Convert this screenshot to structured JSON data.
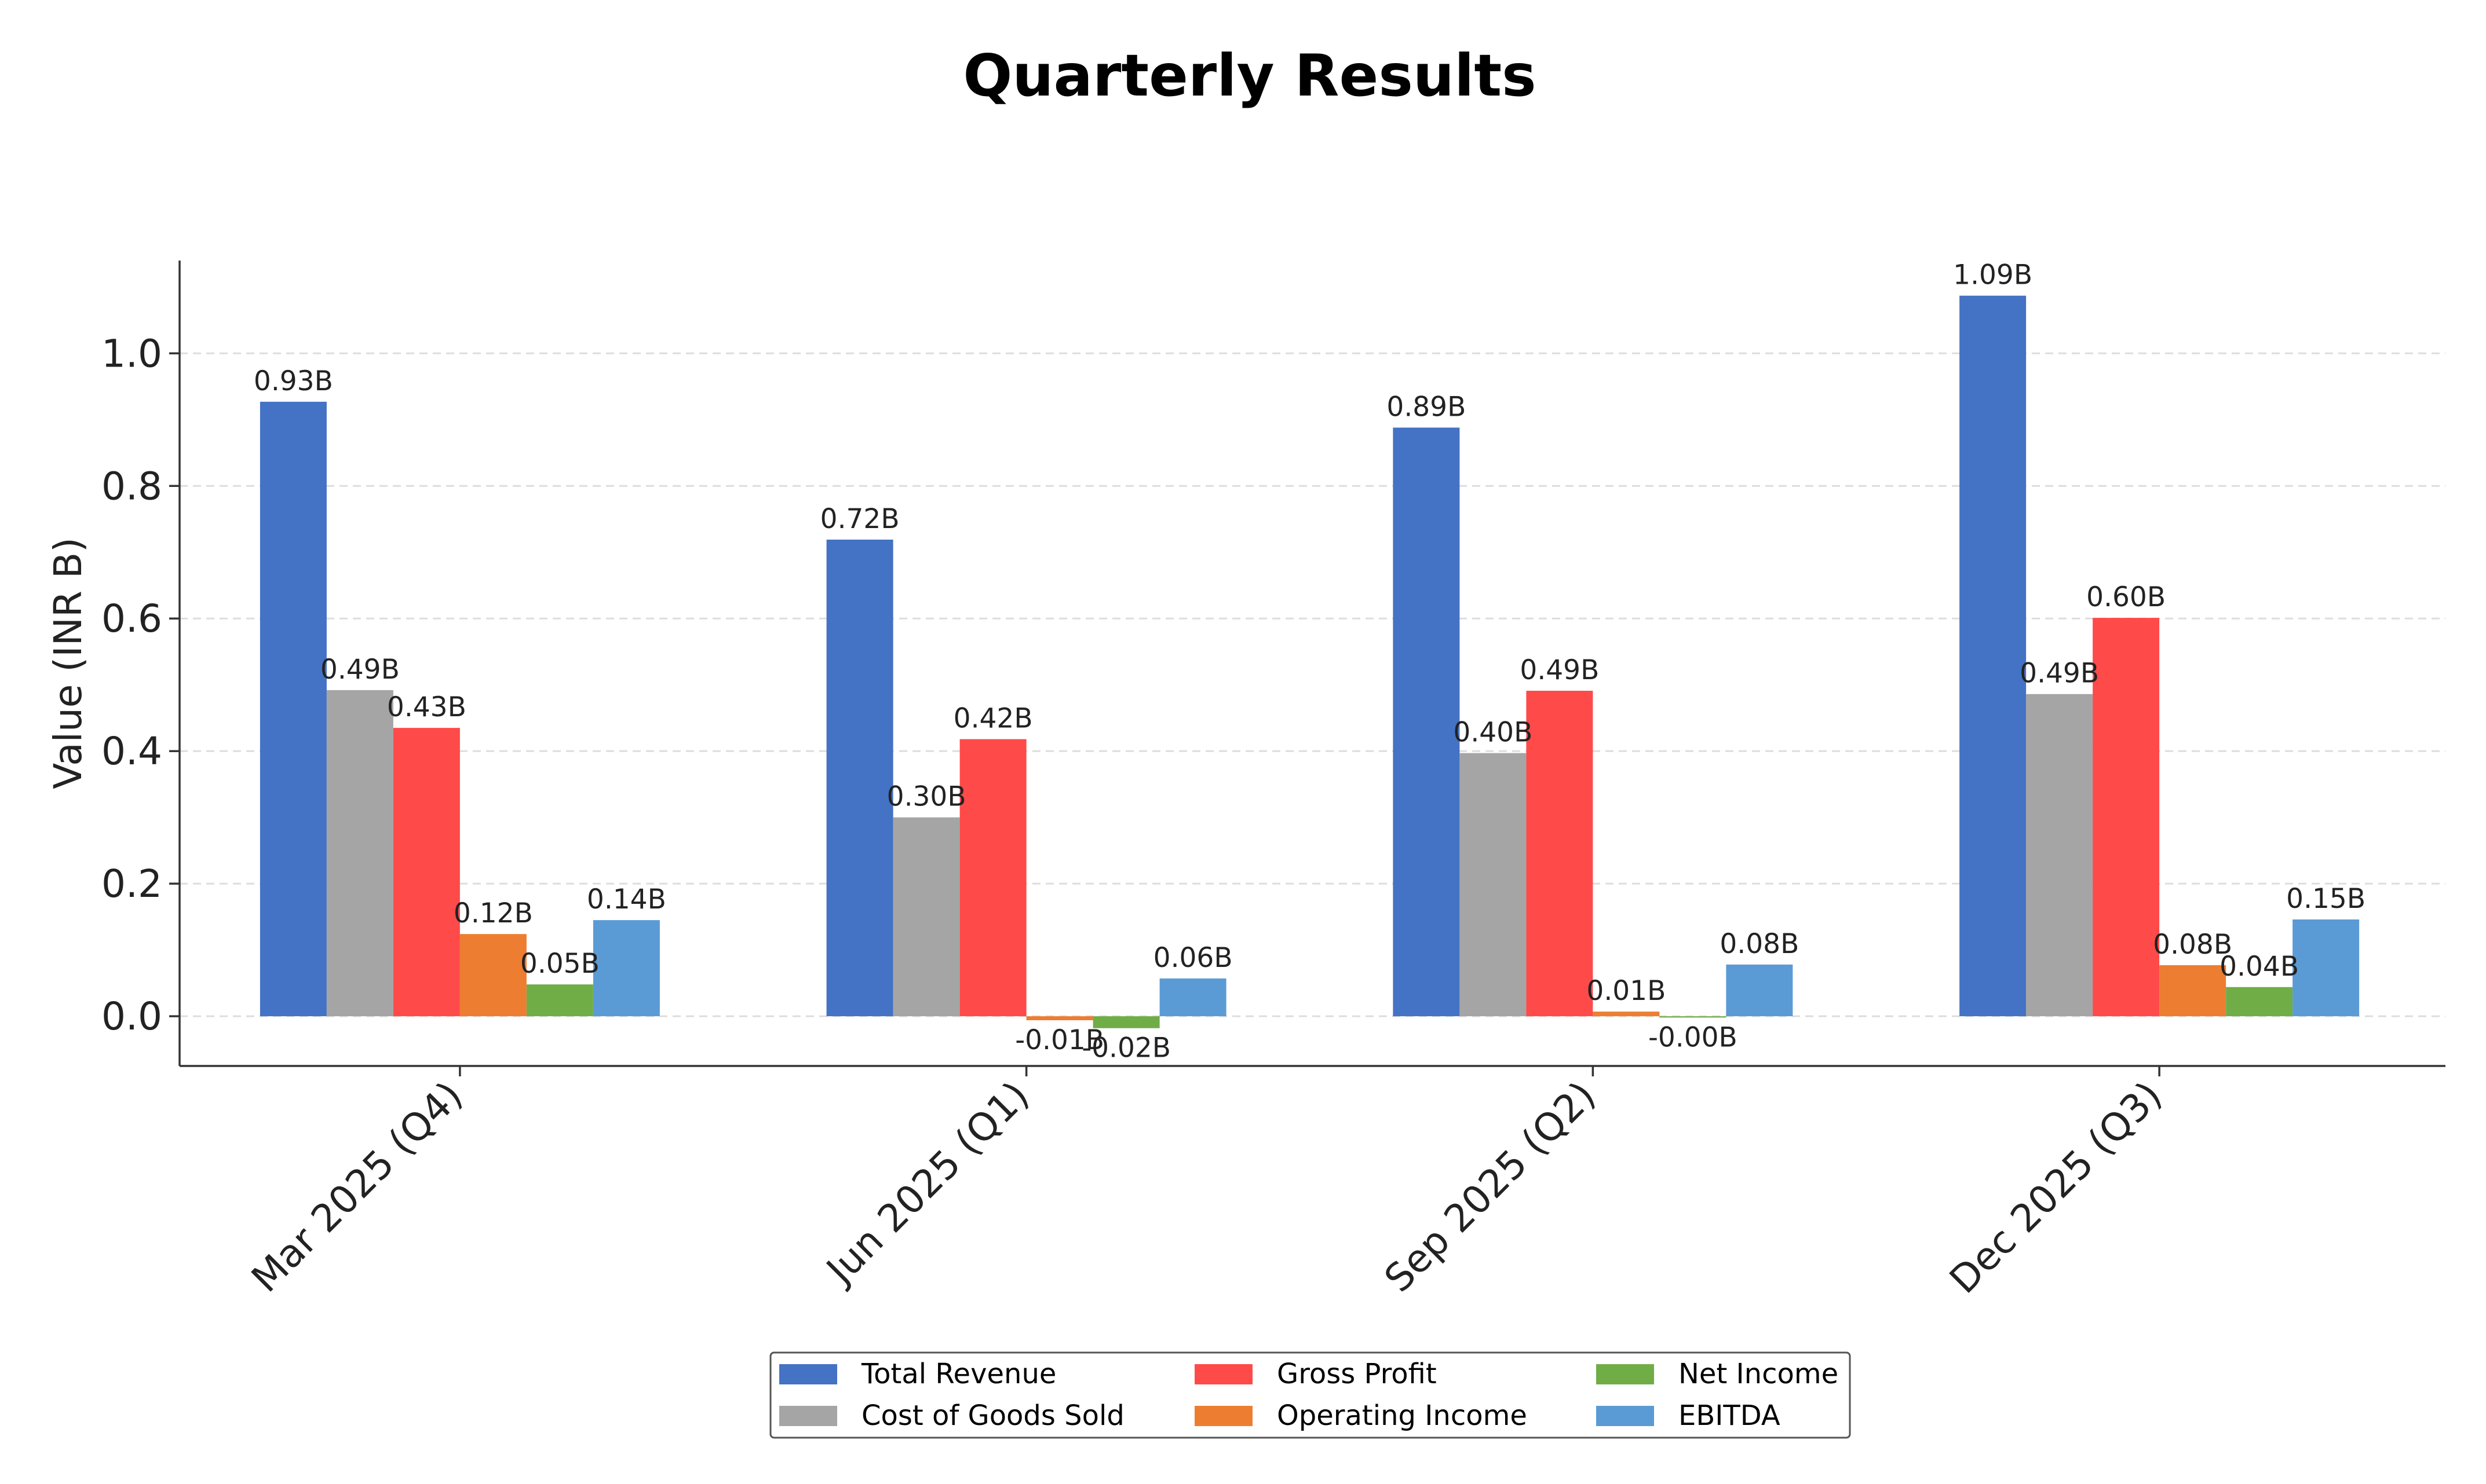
{
  "chart_data": {
    "type": "bar",
    "title": "Quarterly Results",
    "xlabel": "",
    "ylabel": "Value (INR B)",
    "categories": [
      "Mar 2025 (Q4)",
      "Jun 2025 (Q1)",
      "Sep 2025 (Q2)",
      "Dec 2025 (Q3)"
    ],
    "ylim": [
      -0.075,
      1.14
    ],
    "yticks": [
      0.0,
      0.2,
      0.4,
      0.6,
      0.8,
      1.0
    ],
    "ytick_labels": [
      "0.0",
      "0.2",
      "0.4",
      "0.6",
      "0.8",
      "1.0"
    ],
    "grid": true,
    "legend_position": "bottom-center",
    "series": [
      {
        "name": "Total Revenue",
        "color": "#4472c4",
        "values": [
          0.927,
          0.719,
          0.888,
          1.087
        ],
        "labels": [
          "0.93B",
          "0.72B",
          "0.89B",
          "1.09B"
        ]
      },
      {
        "name": "Cost of Goods Sold",
        "color": "#a5a5a5",
        "values": [
          0.492,
          0.3,
          0.397,
          0.486
        ],
        "labels": [
          "0.49B",
          "0.30B",
          "0.40B",
          "0.49B"
        ]
      },
      {
        "name": "Gross Profit",
        "color": "#ff4a4a",
        "values": [
          0.435,
          0.418,
          0.491,
          0.601
        ],
        "labels": [
          "0.43B",
          "0.42B",
          "0.49B",
          "0.60B"
        ]
      },
      {
        "name": "Operating Income",
        "color": "#ed7d31",
        "values": [
          0.124,
          -0.006,
          0.007,
          0.077
        ],
        "labels": [
          "0.12B",
          "-0.01B",
          "0.01B",
          "0.08B"
        ]
      },
      {
        "name": "Net Income",
        "color": "#70ad47",
        "values": [
          0.048,
          -0.018,
          -0.002,
          0.044
        ],
        "labels": [
          "0.05B",
          "-0.02B",
          "-0.00B",
          "0.04B"
        ]
      },
      {
        "name": "EBITDA",
        "color": "#5b9bd5",
        "values": [
          0.145,
          0.057,
          0.078,
          0.146
        ],
        "labels": [
          "0.14B",
          "0.06B",
          "0.08B",
          "0.15B"
        ]
      }
    ]
  }
}
